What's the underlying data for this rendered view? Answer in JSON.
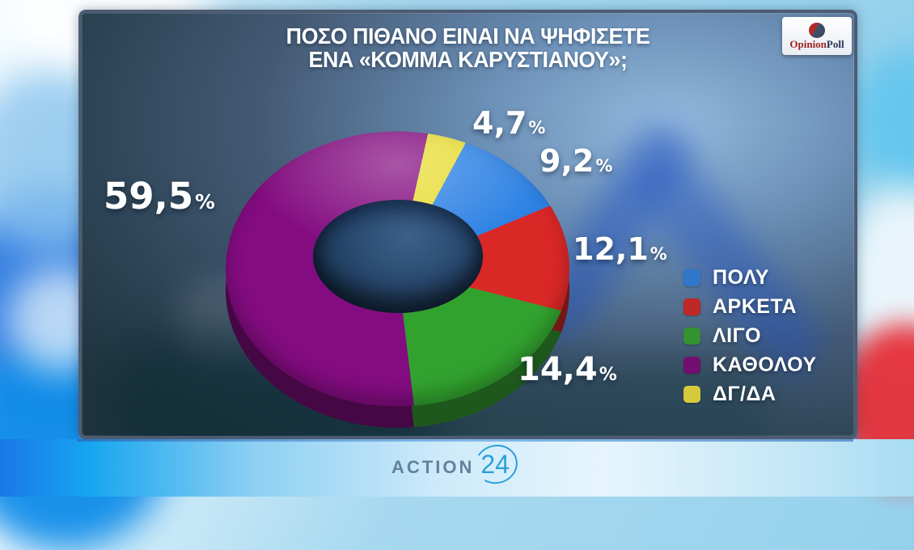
{
  "header": {
    "title_line1": "ΠΟΣΟ ΠΙΘΑΝΟ ΕΙΝΑΙ ΝΑ ΨΗΦΙΣΕΤΕ",
    "title_line2": "ΕΝΑ «ΚΟΜΜΑ ΚΑΡΥΣΤΙΑΝΟΥ»;"
  },
  "badge": {
    "part1": "Opinion",
    "part2": "Poll"
  },
  "chart_data": {
    "type": "pie",
    "subtype": "3d-donut",
    "title": "ΠΟΣΟ ΠΙΘΑΝΟ ΕΙΝΑΙ ΝΑ ΨΗΦΙΣΕΤΕ ΕΝΑ «ΚΟΜΜΑ ΚΑΡΥΣΤΙΑΝΟΥ»;",
    "unit": "%",
    "decimal_separator": ",",
    "label_suffix": "%",
    "legend_position": "right",
    "segments": [
      {
        "label": "ΠΟΛΥ",
        "value": 9.2,
        "display": "9,2",
        "color": "#2e82e4"
      },
      {
        "label": "ΑΡΚΕΤΑ",
        "value": 12.1,
        "display": "12,1",
        "color": "#da2827"
      },
      {
        "label": "ΛΙΓΟ",
        "value": 14.4,
        "display": "14,4",
        "color": "#32a22f"
      },
      {
        "label": "ΚΑΘΟΛΟΥ",
        "value": 59.5,
        "display": "59,5",
        "color": "#830c80"
      },
      {
        "label": "ΔΓ/ΔΑ",
        "value": 4.7,
        "display": "4,7",
        "color": "#e8dc35"
      }
    ],
    "draw_order_clockwise_from_top": [
      "ΔΓ/ΔΑ",
      "ΠΟΛΥ",
      "ΑΡΚΕΤΑ",
      "ΛΙΓΟ",
      "ΚΑΘΟΛΟΥ"
    ]
  },
  "footer": {
    "channel": "ACTION",
    "channel_number": "24"
  }
}
